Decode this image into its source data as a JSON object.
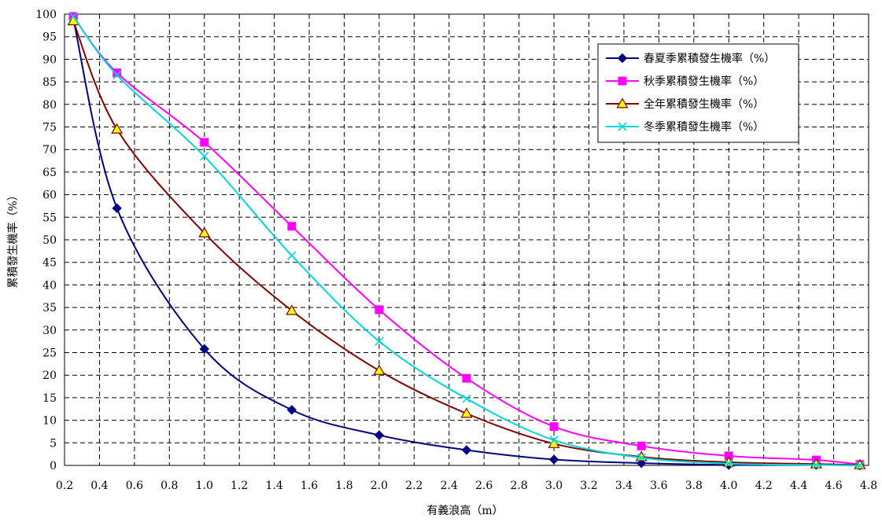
{
  "chart_data": {
    "type": "line",
    "title": "",
    "xlabel": "有義浪高（m）",
    "ylabel": "累積發生機率（%）",
    "xlim": [
      0.2,
      4.8
    ],
    "ylim": [
      0,
      100
    ],
    "x_ticks": [
      "0.2",
      "0.4",
      "0.6",
      "0.8",
      "1.0",
      "1.2",
      "1.4",
      "1.6",
      "1.8",
      "2.0",
      "2.2",
      "2.4",
      "2.6",
      "2.8",
      "3.0",
      "3.2",
      "3.4",
      "3.6",
      "3.8",
      "4.0",
      "4.2",
      "4.4",
      "4.6",
      "4.8"
    ],
    "y_ticks": [
      "0",
      "5",
      "10",
      "15",
      "20",
      "25",
      "30",
      "35",
      "40",
      "45",
      "50",
      "55",
      "60",
      "65",
      "70",
      "75",
      "80",
      "85",
      "90",
      "95",
      "100"
    ],
    "grid": true,
    "legend_position": "top-right",
    "x": [
      0.25,
      0.5,
      1.0,
      1.5,
      2.0,
      2.5,
      3.0,
      3.5,
      4.0,
      4.5,
      4.75
    ],
    "series": [
      {
        "name": "春夏季累積發生機率（%）",
        "color": "#000080",
        "marker": "diamond",
        "values": [
          99,
          57,
          25.8,
          12.3,
          6.7,
          3.4,
          1.3,
          0.5,
          0.1,
          0.1,
          0
        ]
      },
      {
        "name": "秋季累積發生機率（%）",
        "color": "#FF00FF",
        "marker": "square",
        "values": [
          99.5,
          87,
          71.6,
          53,
          34.5,
          19.3,
          8.6,
          4.3,
          2.1,
          1.2,
          0.2
        ]
      },
      {
        "name": "全年累積發生機率（%）",
        "color": "#800000",
        "marker": "triangle",
        "marker_fill": "#FFFF00",
        "values": [
          98.5,
          74.5,
          51.5,
          34.3,
          21,
          11.5,
          4.8,
          1.9,
          0.7,
          0.3,
          0.1
        ]
      },
      {
        "name": "冬季累積發生機率（%）",
        "color": "#00D8D8",
        "marker": "x",
        "values": [
          99.5,
          86.5,
          68.5,
          46.5,
          27.5,
          14.8,
          5.6,
          1.7,
          0.4,
          0.1,
          0
        ]
      }
    ]
  }
}
